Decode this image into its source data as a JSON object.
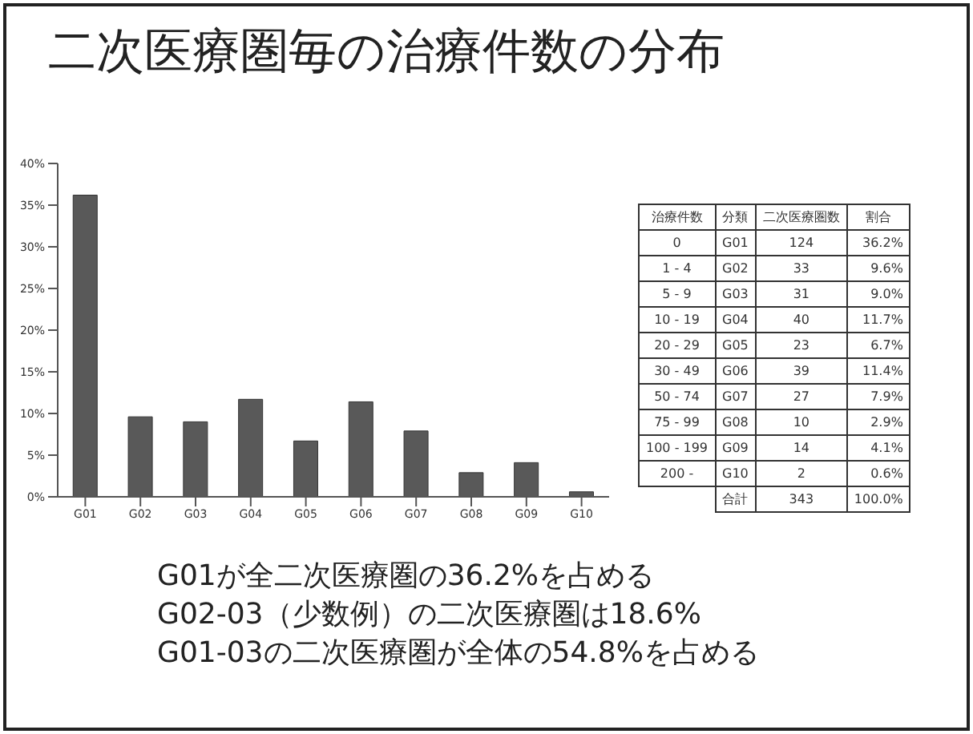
{
  "chart_data": {
    "type": "bar",
    "title": "二次医療圏毎の治療件数の分布",
    "categories": [
      "G01",
      "G02",
      "G03",
      "G04",
      "G05",
      "G06",
      "G07",
      "G08",
      "G09",
      "G10"
    ],
    "series": [
      {
        "color": "#595959",
        "values": [
          36.2,
          9.6,
          9.0,
          11.7,
          6.7,
          11.4,
          7.9,
          2.9,
          4.1,
          0.6
        ]
      }
    ],
    "ylim": [
      0,
      40
    ],
    "yticks": [
      {
        "value": 0,
        "label": "0%"
      },
      {
        "value": 5,
        "label": "5%"
      },
      {
        "value": 10,
        "label": "10%"
      },
      {
        "value": 15,
        "label": "15%"
      },
      {
        "value": 20,
        "label": "20%"
      },
      {
        "value": 25,
        "label": "25%"
      },
      {
        "value": 30,
        "label": "30%"
      },
      {
        "value": 35,
        "label": "35%"
      },
      {
        "value": 40,
        "label": "40%"
      }
    ],
    "grid": false,
    "legend": false,
    "annotations": [
      "治療件数",
      "分類",
      "二次医療圏数",
      "割合",
      "0",
      "124",
      "36.2%",
      "1 - 4",
      "33",
      "9.6%",
      "5 - 9",
      "31",
      "9.0%",
      "10 - 19",
      "40",
      "11.7%",
      "20 - 29",
      "23",
      "6.7%",
      "30 - 49",
      "39",
      "11.4%",
      "50 - 74",
      "27",
      "7.9%",
      "75 - 99",
      "10",
      "2.9%",
      "100 - 199",
      "14",
      "4.1%",
      "200 -",
      "2",
      "0.6%",
      "合計",
      "343",
      "100.0%",
      "G01が全二次医療圏の36.2%を占める",
      "G02-03（少数例）の二次医療圏は18.6%",
      "G01-03の二次医療圏が全体の54.8%を占める"
    ]
  }
}
